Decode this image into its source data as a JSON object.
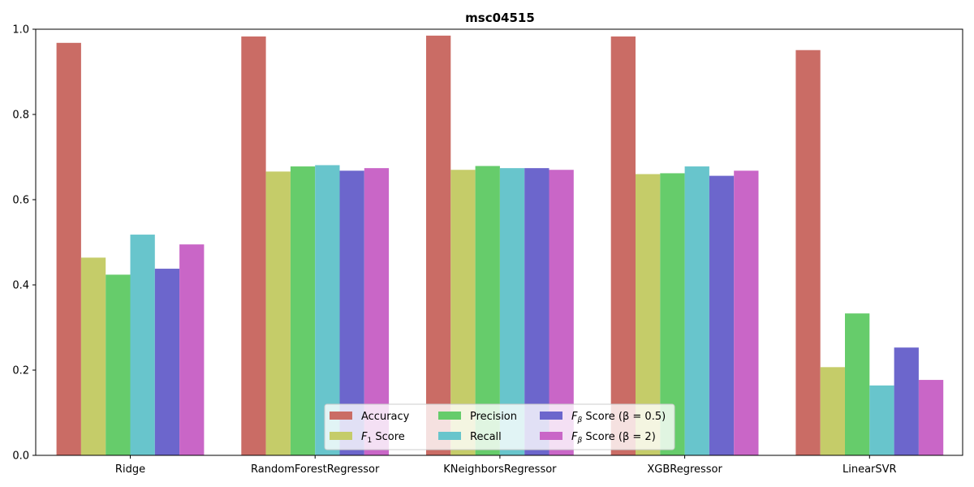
{
  "chart_data": {
    "type": "bar",
    "title": "msc04515",
    "xlabel": "",
    "ylabel": "",
    "ylim": [
      0,
      1.0
    ],
    "yticks": [
      0.0,
      0.2,
      0.4,
      0.6,
      0.8,
      1.0
    ],
    "ytick_labels": [
      "0.0",
      "0.2",
      "0.4",
      "0.6",
      "0.8",
      "1.0"
    ],
    "grid": false,
    "legend_position": "lower center",
    "categories": [
      "Ridge",
      "RandomForestRegressor",
      "KNeighborsRegressor",
      "XGBRegressor",
      "LinearSVR"
    ],
    "series": [
      {
        "name": "Accuracy",
        "legend_main": "Accuracy",
        "legend_sub": "",
        "legend_rest": "",
        "color": "#ca6c65",
        "values": [
          0.968,
          0.983,
          0.985,
          0.983,
          0.951
        ]
      },
      {
        "name": "F1 Score",
        "legend_main": "F",
        "legend_sub": "1",
        "legend_rest": " Score",
        "color": "#c5cc69",
        "values": [
          0.464,
          0.666,
          0.67,
          0.66,
          0.207
        ]
      },
      {
        "name": "Precision",
        "legend_main": "Precision",
        "legend_sub": "",
        "legend_rest": "",
        "color": "#66cc6b",
        "values": [
          0.424,
          0.678,
          0.679,
          0.662,
          0.333
        ]
      },
      {
        "name": "Recall",
        "legend_main": "Recall",
        "legend_sub": "",
        "legend_rest": "",
        "color": "#68c5cc",
        "values": [
          0.518,
          0.681,
          0.674,
          0.678,
          0.164
        ]
      },
      {
        "name": "Fβ Score (β = 0.5)",
        "legend_main": "F",
        "legend_sub": "β",
        "legend_rest": " Score (β = 0.5)",
        "color": "#6c66cc",
        "values": [
          0.438,
          0.668,
          0.674,
          0.656,
          0.253
        ]
      },
      {
        "name": "Fβ Score (β = 2)",
        "legend_main": "F",
        "legend_sub": "β",
        "legend_rest": " Score (β = 2)",
        "color": "#c966c7",
        "values": [
          0.495,
          0.674,
          0.67,
          0.668,
          0.177
        ]
      }
    ]
  }
}
